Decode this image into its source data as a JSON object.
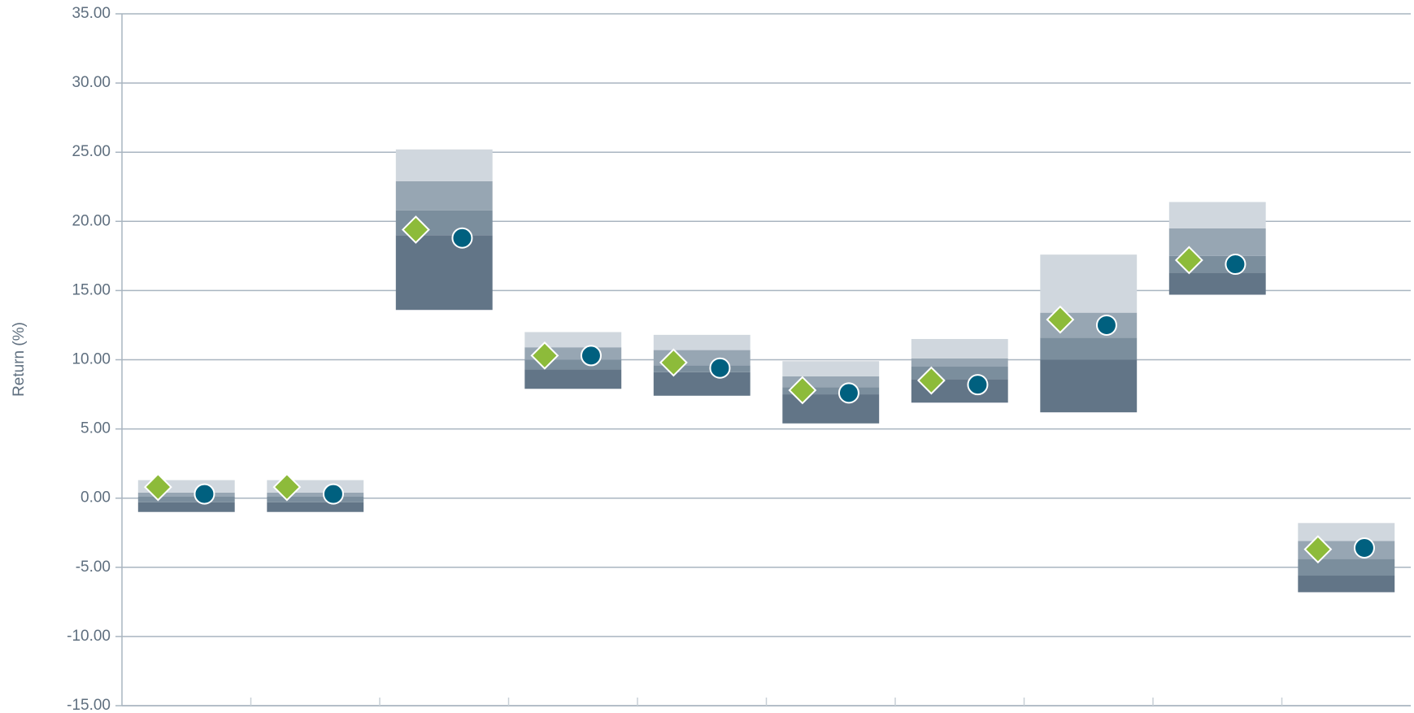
{
  "chart_data": {
    "type": "floating_bar",
    "y_label": "Return (%)",
    "categories": [
      null,
      null,
      null,
      null,
      null,
      null,
      null,
      null,
      null,
      null
    ],
    "ylim": [
      -15,
      35
    ],
    "yticks": [
      {
        "value": -15,
        "label": "-15.00"
      },
      {
        "value": -10,
        "label": "-10.00"
      },
      {
        "value": -5,
        "label": "-5.00"
      },
      {
        "value": 0,
        "label": "0.00"
      },
      {
        "value": 5,
        "label": "5.00"
      },
      {
        "value": 10,
        "label": "10.00"
      },
      {
        "value": 15,
        "label": "15.00"
      },
      {
        "value": 20,
        "label": "20.00"
      },
      {
        "value": 25,
        "label": "25.00"
      },
      {
        "value": 30,
        "label": "30.00"
      },
      {
        "value": 35,
        "label": "35.00"
      }
    ],
    "grid": true,
    "band_colors": [
      "#627587",
      "#7b8e9d",
      "#97a6b3",
      "#d0d7de"
    ],
    "percentiles": [
      {
        "values": [
          -1.0,
          -1.0,
          13.6,
          7.9,
          7.4,
          5.4,
          6.9,
          6.2,
          14.7,
          -6.8
        ]
      },
      {
        "values": [
          -0.3,
          -0.3,
          19.0,
          9.3,
          9.1,
          7.5,
          8.6,
          10.0,
          16.3,
          -5.6
        ]
      },
      {
        "values": [
          0.1,
          0.1,
          20.8,
          10.0,
          9.6,
          8.0,
          9.5,
          11.6,
          17.5,
          -4.4
        ]
      },
      {
        "values": [
          0.4,
          0.4,
          22.9,
          10.9,
          10.7,
          8.8,
          10.1,
          13.4,
          19.5,
          -3.1
        ]
      },
      {
        "values": [
          1.3,
          1.3,
          25.2,
          12.0,
          11.8,
          9.9,
          11.5,
          17.6,
          21.4,
          -1.8
        ]
      }
    ],
    "series": [
      {
        "marker": "diamond",
        "color": "#8dbb3a",
        "values": [
          0.8,
          0.8,
          19.4,
          10.3,
          9.8,
          7.8,
          8.5,
          12.9,
          17.2,
          -3.7
        ]
      },
      {
        "marker": "circle",
        "color": "#00607f",
        "values": [
          0.3,
          0.3,
          18.8,
          10.3,
          9.4,
          7.6,
          8.2,
          12.5,
          16.9,
          -3.6
        ]
      }
    ]
  }
}
